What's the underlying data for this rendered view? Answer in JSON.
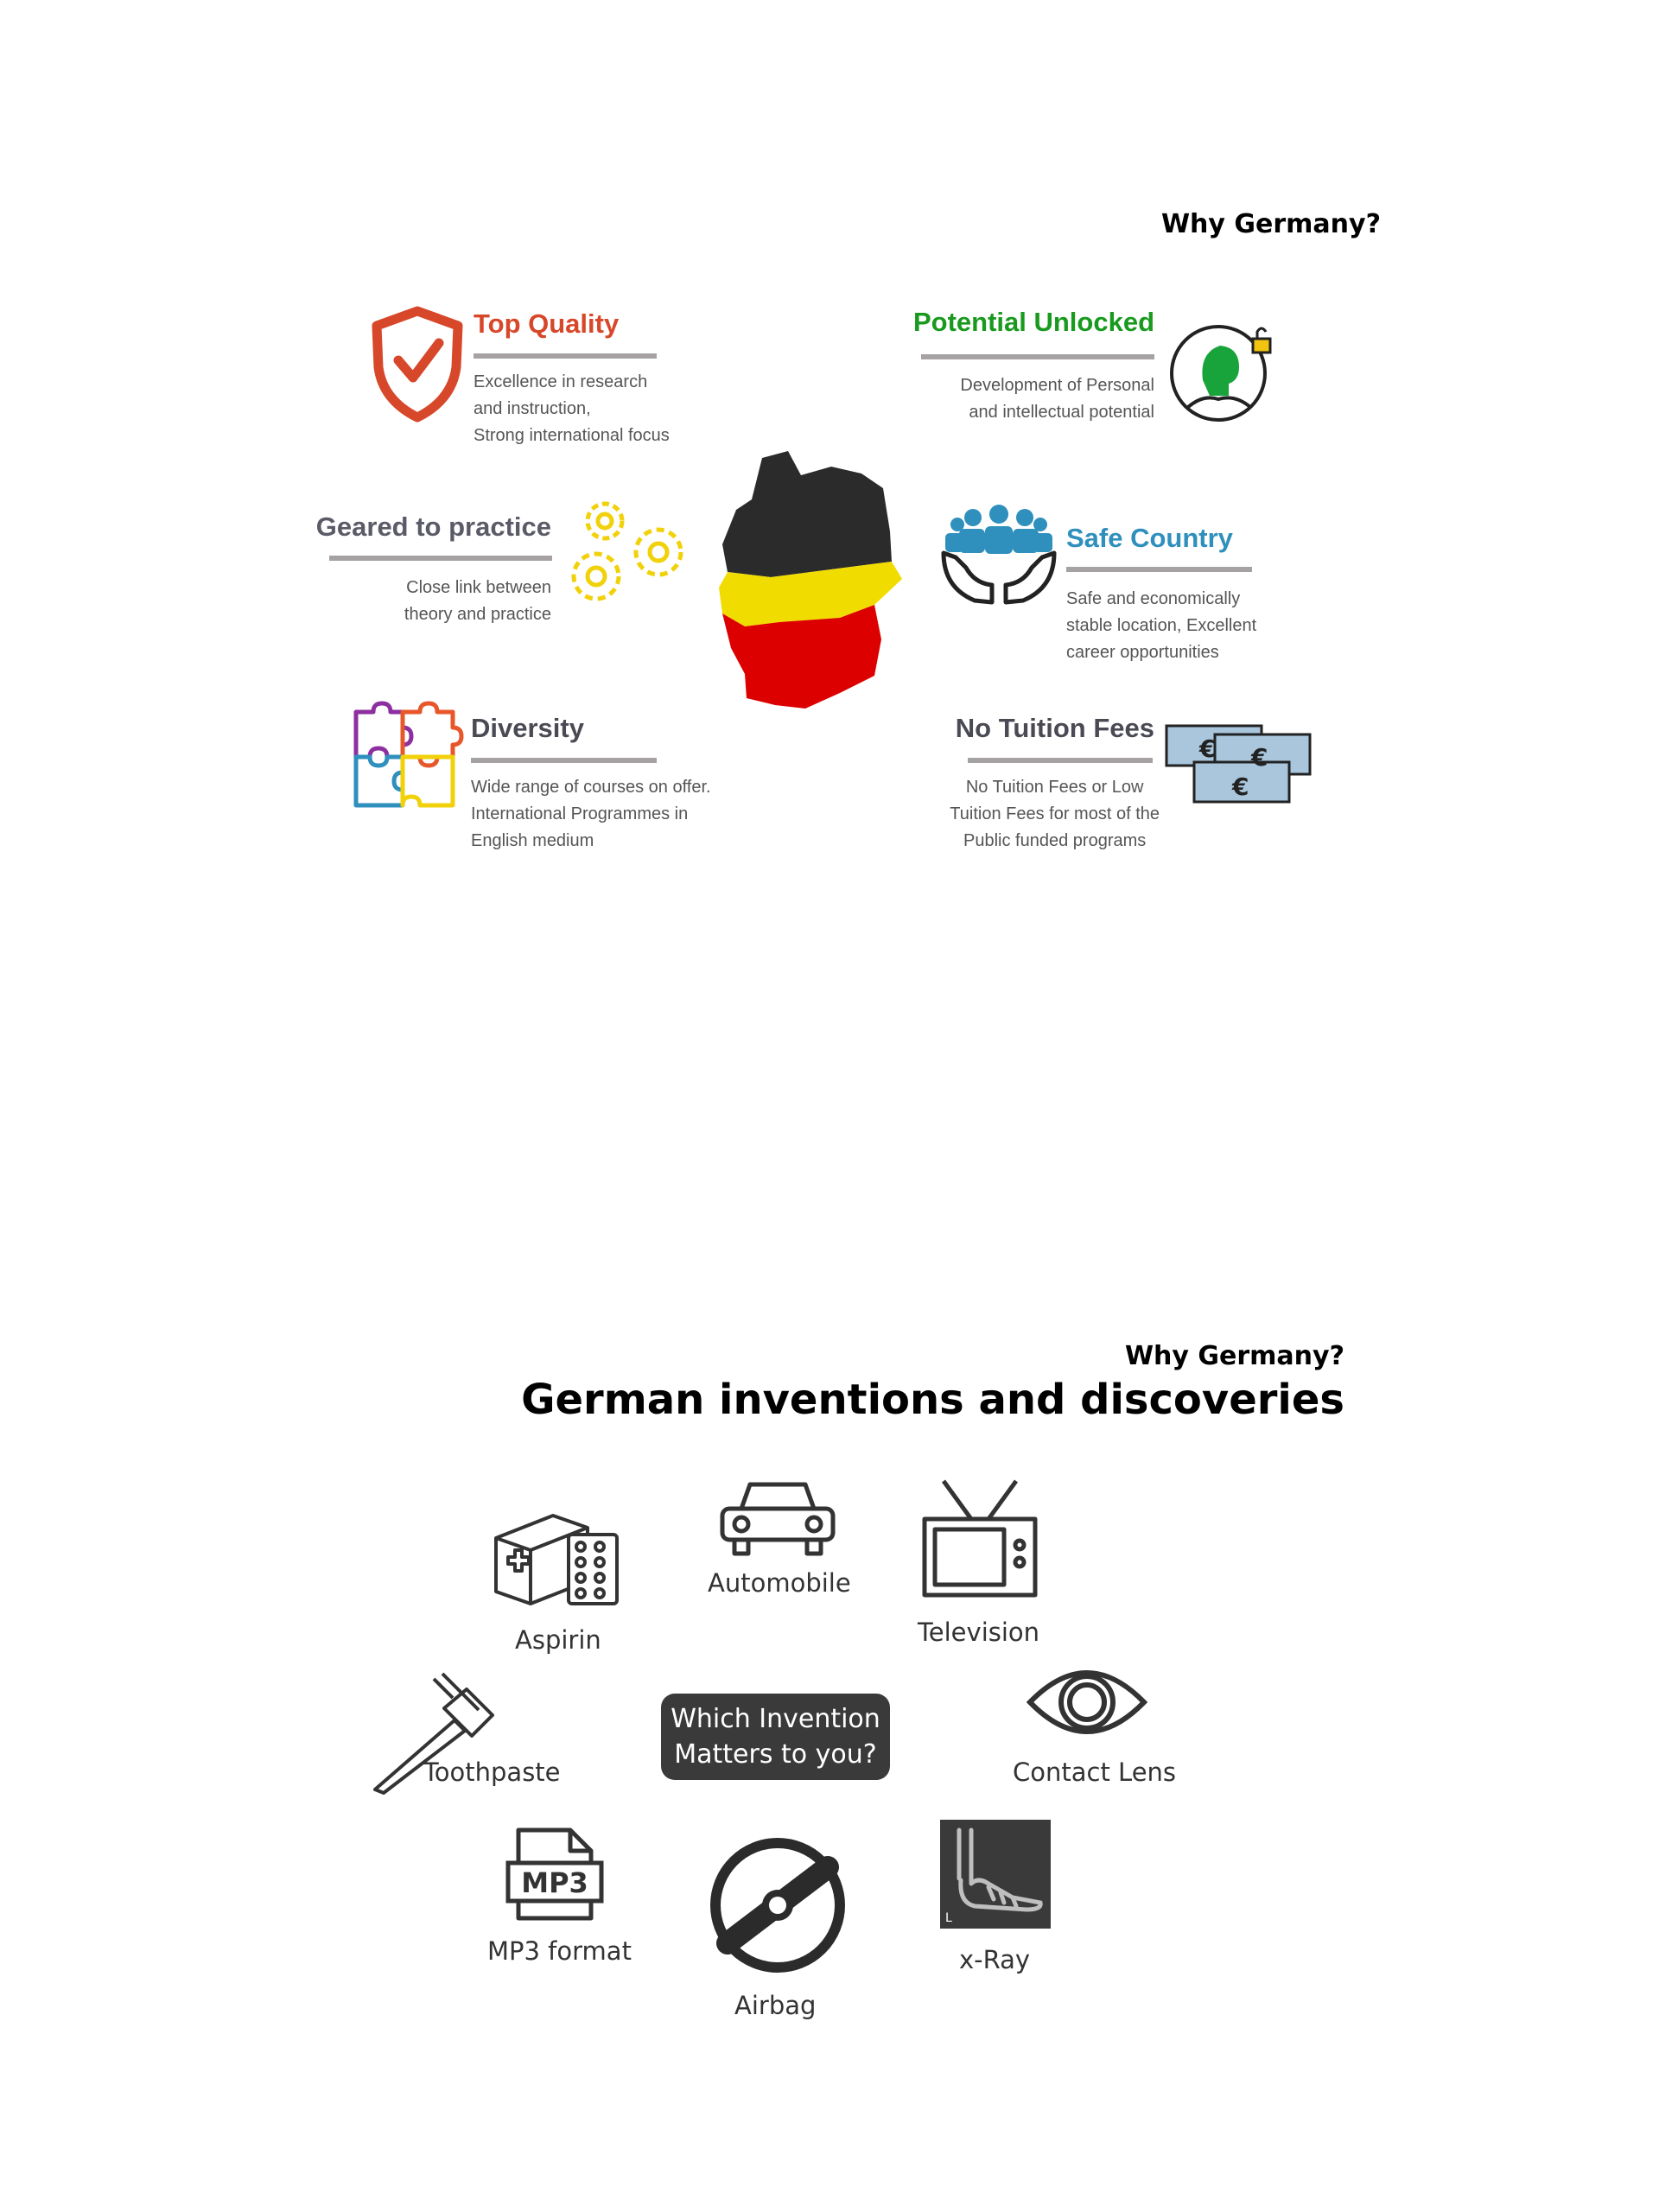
{
  "page1": {
    "header": "Why Germany?",
    "features": [
      {
        "id": "top-quality",
        "title": "Top Quality",
        "color": "#d7472a",
        "desc": "Excellence in research\nand instruction,\nStrong international focus",
        "icon": "shield-check-icon"
      },
      {
        "id": "potential-unlocked",
        "title": "Potential Unlocked",
        "color": "#199a1e",
        "desc": "Development of Personal\nand intellectual potential",
        "icon": "person-unlocked-icon"
      },
      {
        "id": "geared-to-practice",
        "title": "Geared to practice",
        "color": "#5b5b68",
        "desc": "Close link between\ntheory and practice",
        "icon": "gears-icon"
      },
      {
        "id": "safe-country",
        "title": "Safe Country",
        "color": "#2f8fbd",
        "desc": "Safe and economically\nstable location, Excellent\ncareer opportunities",
        "icon": "people-in-hands-icon"
      },
      {
        "id": "diversity",
        "title": "Diversity",
        "color": "#4a4a55",
        "desc": "Wide range of courses on offer.\nInternational Programmes in\nEnglish medium",
        "icon": "puzzle-icon"
      },
      {
        "id": "no-tuition-fees",
        "title": "No Tuition Fees",
        "color": "#4a4a55",
        "desc": "No Tuition Fees or Low\nTuition Fees for most of the\nPublic funded programs",
        "icon": "euro-banknotes-icon"
      }
    ],
    "map": {
      "icon": "germany-map-icon",
      "colors": [
        "#2b2b2b",
        "#f1dc00",
        "#dd0000"
      ]
    }
  },
  "page2": {
    "header": "Why Germany?",
    "title": "German inventions and discoveries",
    "center_bubble": "Which Invention\nMatters to you?",
    "inventions": [
      {
        "id": "aspirin",
        "label": "Aspirin",
        "icon": "medicine-box-icon"
      },
      {
        "id": "automobile",
        "label": "Automobile",
        "icon": "car-icon"
      },
      {
        "id": "television",
        "label": "Television",
        "icon": "tv-icon"
      },
      {
        "id": "toothpaste",
        "label": "Toothpaste",
        "icon": "toothbrush-icon"
      },
      {
        "id": "contact-lens",
        "label": "Contact Lens",
        "icon": "eye-icon"
      },
      {
        "id": "mp3",
        "label": "MP3 format",
        "icon": "mp3-file-icon"
      },
      {
        "id": "airbag",
        "label": "Airbag",
        "icon": "airbag-icon"
      },
      {
        "id": "xray",
        "label": "x-Ray",
        "icon": "xray-icon"
      }
    ]
  }
}
